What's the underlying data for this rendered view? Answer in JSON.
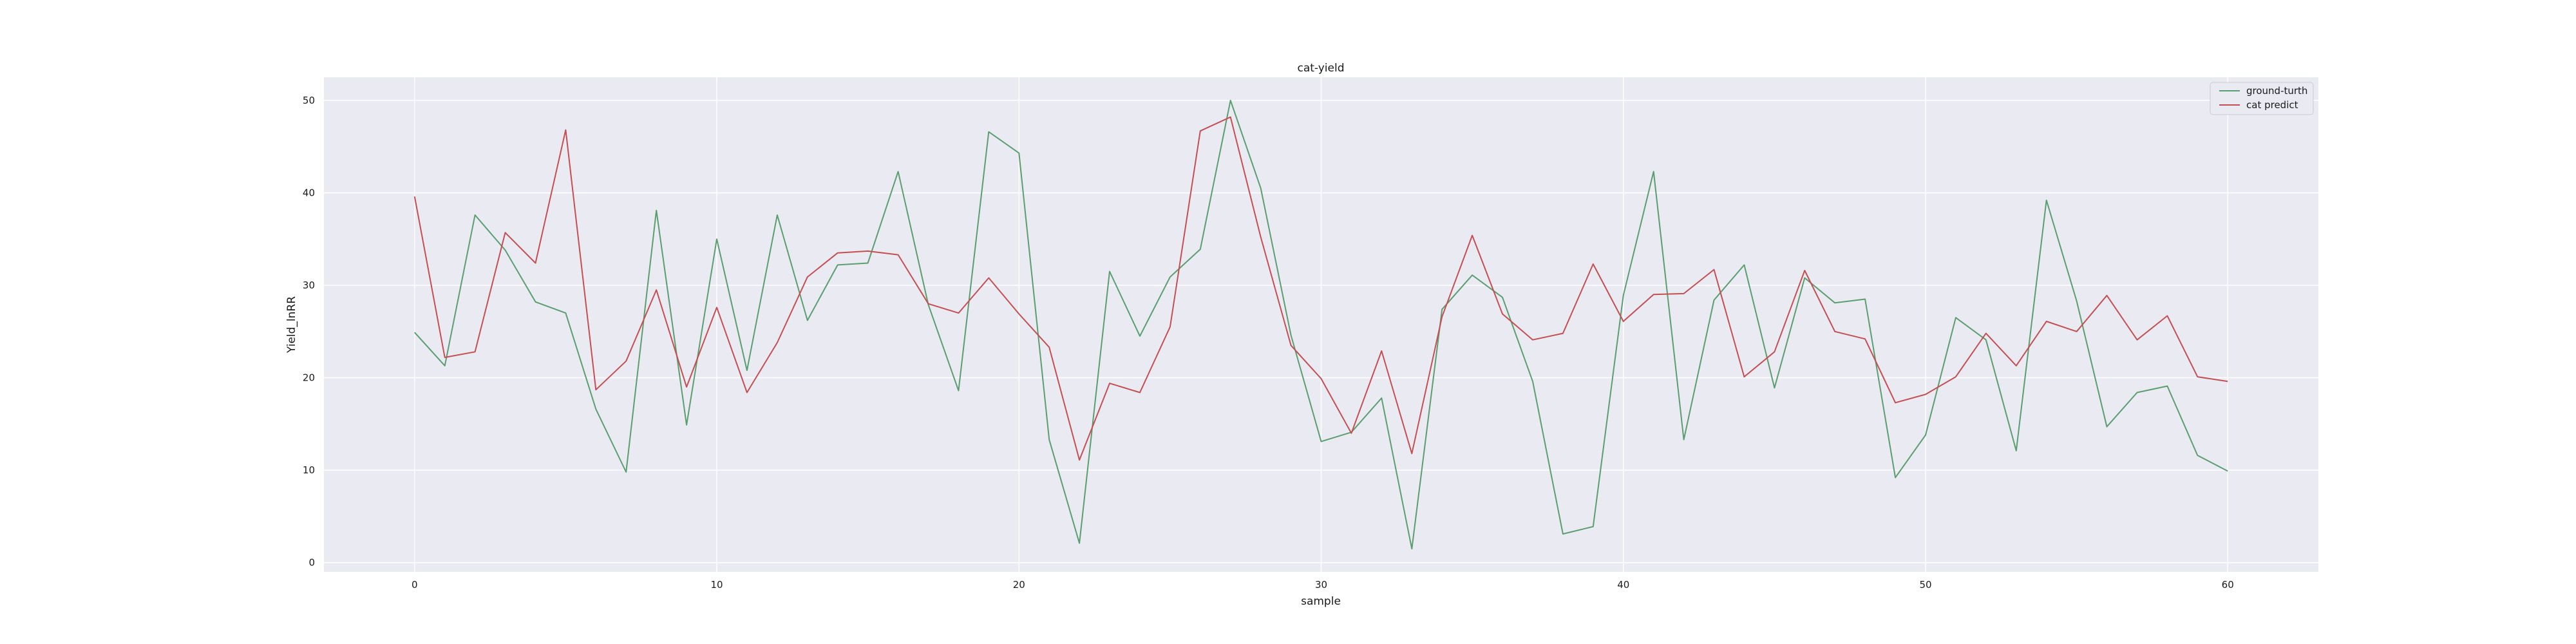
{
  "chart_data": {
    "type": "line",
    "title": "cat-yield",
    "xlabel": "sample",
    "ylabel": "Yield_lnRR",
    "xlim": [
      -3,
      63
    ],
    "ylim": [
      -1,
      52.5
    ],
    "xticks": [
      0,
      10,
      20,
      30,
      40,
      50,
      60
    ],
    "yticks": [
      0,
      10,
      20,
      30,
      40,
      50
    ],
    "grid": true,
    "legend_position": "upper right",
    "x": [
      0,
      1,
      2,
      3,
      4,
      5,
      6,
      7,
      8,
      9,
      10,
      11,
      12,
      13,
      14,
      15,
      16,
      17,
      18,
      19,
      20,
      21,
      22,
      23,
      24,
      25,
      26,
      27,
      28,
      29,
      30,
      31,
      32,
      33,
      34,
      35,
      36,
      37,
      38,
      39,
      40,
      41,
      42,
      43,
      44,
      45,
      46,
      47,
      48,
      49,
      50,
      51,
      52,
      53,
      54,
      55,
      56,
      57,
      58,
      59,
      60
    ],
    "series": [
      {
        "name": "ground-turth",
        "color": "#5a9e6f",
        "values": [
          24.9,
          21.3,
          37.6,
          33.8,
          28.2,
          27.0,
          16.6,
          9.8,
          38.1,
          14.9,
          35.0,
          20.8,
          37.6,
          26.2,
          32.2,
          32.4,
          42.3,
          27.9,
          18.6,
          46.6,
          44.3,
          13.3,
          2.1,
          31.5,
          24.5,
          30.9,
          33.9,
          50.0,
          40.5,
          24.6,
          13.1,
          14.1,
          17.8,
          1.5,
          27.4,
          31.1,
          28.7,
          19.6,
          3.1,
          3.9,
          28.9,
          42.3,
          13.3,
          28.4,
          32.2,
          18.9,
          30.8,
          28.1,
          28.5,
          9.2,
          13.8,
          26.5,
          24.1,
          12.1,
          39.2,
          28.3,
          14.7,
          18.4,
          19.1,
          11.6,
          9.9
        ]
      },
      {
        "name": "cat predict",
        "color": "#c44e52",
        "values": [
          39.6,
          22.2,
          22.8,
          35.7,
          32.4,
          46.8,
          18.7,
          21.8,
          29.5,
          19.0,
          27.6,
          18.4,
          23.8,
          30.9,
          33.5,
          33.7,
          33.3,
          28.0,
          27.0,
          30.8,
          26.9,
          23.3,
          11.1,
          19.4,
          18.4,
          25.5,
          46.7,
          48.2,
          35.2,
          23.5,
          19.9,
          14.0,
          22.9,
          11.8,
          26.6,
          35.4,
          26.9,
          24.1,
          24.8,
          32.3,
          26.1,
          29.0,
          29.1,
          31.7,
          20.1,
          22.8,
          31.6,
          25.0,
          24.2,
          17.3,
          18.2,
          20.1,
          24.8,
          21.3,
          26.1,
          25.0,
          28.9,
          24.1,
          26.7,
          20.1,
          19.6
        ]
      }
    ]
  }
}
